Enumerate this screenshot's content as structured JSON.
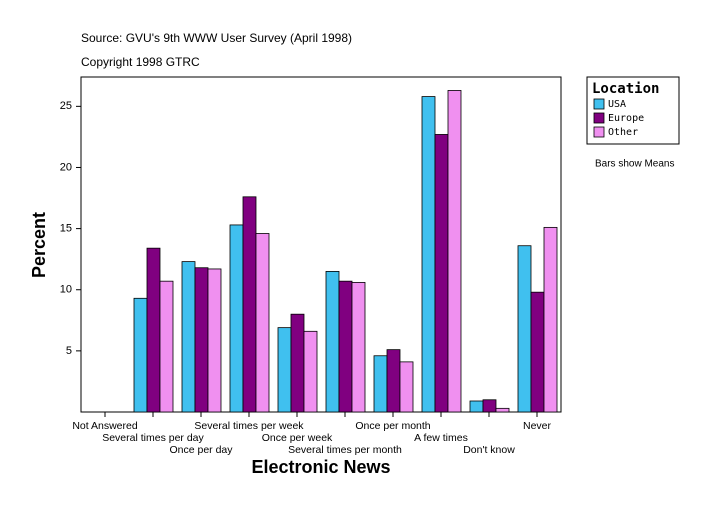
{
  "chart_data": {
    "type": "bar",
    "title": "Source: GVU's 9th WWW User Survey (April 1998)",
    "subtitle": "Copyright 1998 GTRC",
    "x_label": "Electronic News",
    "y_label": "Percent",
    "legend_title": "Location",
    "annotation": "Bars show Means",
    "categories": [
      "Not Answered",
      "Several times per day",
      "Once per day",
      "Several times per week",
      "Once per week",
      "Several times per month",
      "Once per month",
      "A few times",
      "Don't know",
      "Never"
    ],
    "series": [
      {
        "name": "USA",
        "color": "#40c0ef",
        "values": [
          0,
          9.3,
          12.3,
          15.3,
          6.9,
          11.5,
          4.6,
          25.8,
          0.9,
          13.6
        ]
      },
      {
        "name": "Europe",
        "color": "#800080",
        "values": [
          0,
          13.4,
          11.8,
          17.6,
          8.0,
          10.7,
          5.1,
          22.7,
          1.0,
          9.8
        ]
      },
      {
        "name": "Other",
        "color": "#f090f0",
        "values": [
          0,
          10.7,
          11.7,
          14.6,
          6.6,
          10.6,
          4.1,
          26.3,
          0.3,
          15.1
        ]
      }
    ],
    "ylim": [
      0,
      27.4
    ],
    "yticks": [
      5,
      10,
      15,
      20,
      25
    ],
    "grid": false,
    "legend": "right"
  }
}
